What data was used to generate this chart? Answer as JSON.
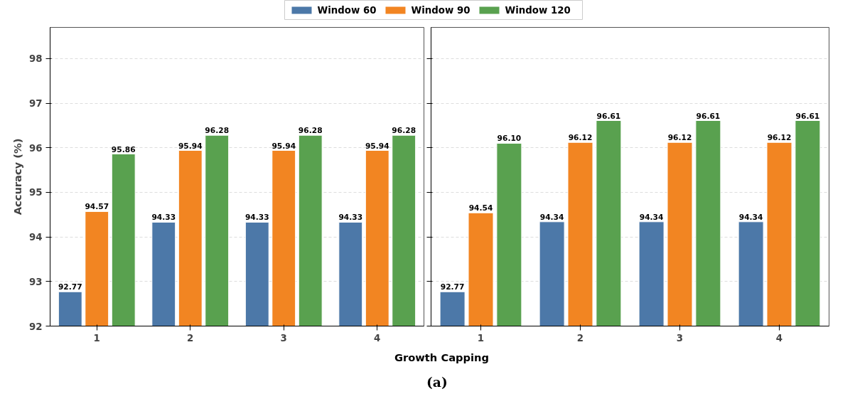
{
  "chart_data": [
    {
      "type": "bar",
      "xlabel": "Growth Capping",
      "ylabel": "Accuracy (%)",
      "categories": [
        "1",
        "2",
        "3",
        "4"
      ],
      "series": [
        {
          "name": "Window 60",
          "color": "#4c78a8",
          "values": [
            92.77,
            94.33,
            94.33,
            94.33
          ],
          "value_labels": [
            "92.77",
            "94.33",
            "94.33",
            "94.33"
          ]
        },
        {
          "name": "Window 90",
          "color": "#f28522",
          "values": [
            94.57,
            95.94,
            95.94,
            95.94
          ],
          "value_labels": [
            "94.57",
            "95.94",
            "95.94",
            "95.94"
          ]
        },
        {
          "name": "Window 120",
          "color": "#59a14f",
          "values": [
            95.86,
            96.28,
            96.28,
            96.28
          ],
          "value_labels": [
            "95.86",
            "96.28",
            "96.28",
            "96.28"
          ]
        }
      ],
      "ylim": [
        92,
        98.7
      ],
      "yticks": [
        92,
        93,
        94,
        95,
        96,
        97,
        98
      ],
      "legend": "top",
      "grid": "y",
      "annotations": [
        "(a)"
      ]
    },
    {
      "type": "bar",
      "categories": [
        "1",
        "2",
        "3",
        "4"
      ],
      "series": [
        {
          "color": "#4c78a8",
          "values": [
            92.77,
            94.34,
            94.34,
            94.34
          ],
          "value_labels": [
            "92.77",
            "94.34",
            "94.34",
            "94.34"
          ]
        },
        {
          "color": "#f28522",
          "values": [
            94.54,
            96.12,
            96.12,
            96.12
          ],
          "value_labels": [
            "94.54",
            "96.12",
            "96.12",
            "96.12"
          ]
        },
        {
          "color": "#59a14f",
          "values": [
            96.1,
            96.61,
            96.61,
            96.61
          ],
          "value_labels": [
            "96.10",
            "96.61",
            "96.61",
            "96.61"
          ]
        }
      ],
      "ylim": [
        92,
        98.7
      ],
      "yticks": [
        92,
        93,
        94,
        95,
        96,
        97,
        98
      ],
      "grid": "y",
      "tick_labels": "x"
    }
  ]
}
